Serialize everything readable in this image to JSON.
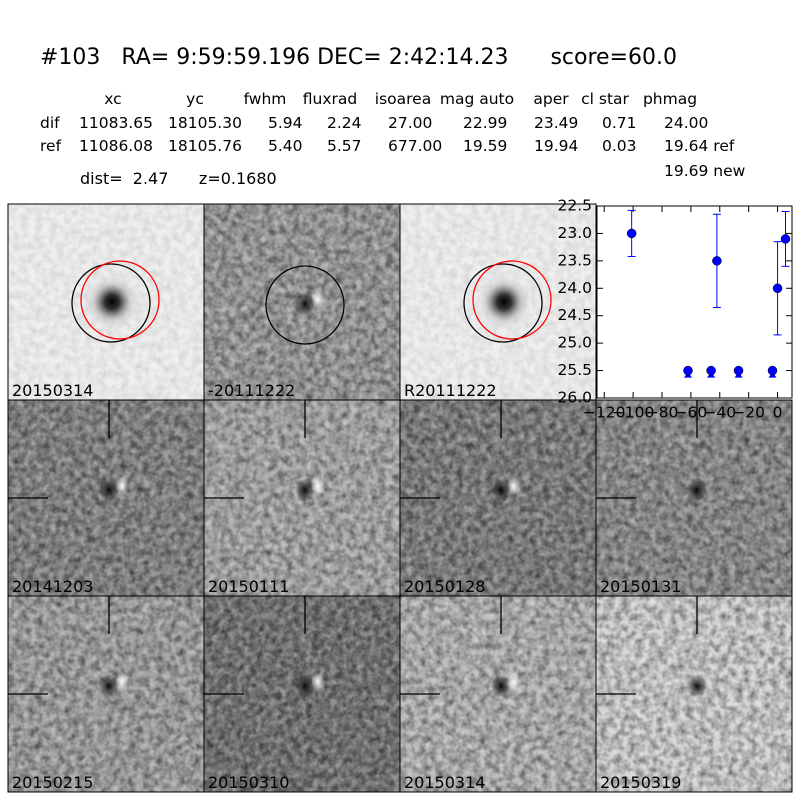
{
  "header": {
    "title": "#103   RA= 9:59:59.196 DEC= 2:42:14.23      score=60.0",
    "dist": "dist=  2.47      z=0.1680",
    "extra": "19.69 new"
  },
  "table": {
    "columns": [
      "xc",
      "yc",
      "fwhm",
      "fluxrad",
      "isoarea",
      "mag auto",
      "aper",
      "cl star",
      "phmag"
    ],
    "rows": [
      [
        "dif",
        "11083.65",
        "18105.30",
        "5.94",
        "2.24",
        "27.00",
        "22.99",
        "23.49",
        "0.71",
        "24.00"
      ],
      [
        "ref",
        "11086.08",
        "18105.76",
        "5.40",
        "5.57",
        "677.00",
        "19.59",
        "19.94",
        "0.03",
        "19.64 ref"
      ]
    ]
  },
  "stamps": [
    {
      "label": "20150314"
    },
    {
      "label": "-20111222"
    },
    {
      "label": "R20111222"
    },
    {
      "label": "20141203"
    },
    {
      "label": "20150111"
    },
    {
      "label": "20150128"
    },
    {
      "label": "20150131"
    },
    {
      "label": "20150215"
    },
    {
      "label": "20150310"
    },
    {
      "label": "20150314",
      "color": "#ff0000"
    },
    {
      "label": "20150319"
    }
  ],
  "chart_data": {
    "type": "errorbar",
    "xlim": [
      -125,
      10
    ],
    "ylim": [
      22.5,
      26.0
    ],
    "y_inverted": true,
    "xticks": [
      {
        "value": -120,
        "label": "−120"
      },
      {
        "value": -100,
        "label": "−100"
      },
      {
        "value": -80,
        "label": "−80"
      },
      {
        "value": -60,
        "label": "−60"
      },
      {
        "value": -40,
        "label": "−40"
      },
      {
        "value": -20,
        "label": "−20"
      },
      0
    ],
    "yticks": [
      22.5,
      {
        "value": 23.0,
        "label": "23.0"
      },
      23.5,
      {
        "value": 24.0,
        "label": "24.0"
      },
      24.5,
      {
        "value": 25.0,
        "label": "25.0"
      },
      25.5,
      {
        "value": 26.0,
        "label": "26.0"
      }
    ],
    "series": [
      {
        "color": "#0000ff",
        "x": [
          -101,
          -42,
          0,
          5.5
        ],
        "values": [
          23.0,
          23.5,
          24.0,
          23.1
        ],
        "errors": [
          0.42,
          0.85,
          0.85,
          0.5
        ]
      },
      {
        "color": "#0000ff",
        "marker": "limit",
        "x": [
          -62,
          -46,
          -27,
          -3.5
        ],
        "values": [
          25.5,
          25.5,
          25.5,
          25.5
        ]
      }
    ]
  }
}
